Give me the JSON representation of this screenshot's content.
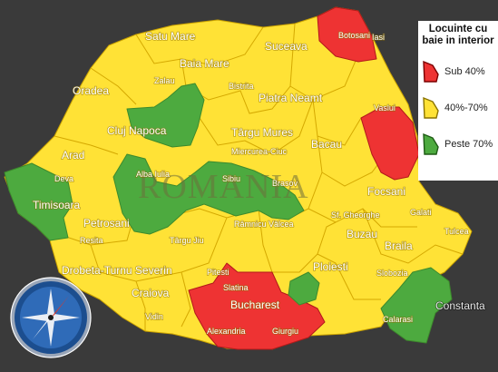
{
  "watermark": "ROMANIA",
  "colors": {
    "red": "#ee3333",
    "yellow": "#ffe236",
    "green": "#4daa3f"
  },
  "legend": {
    "title": "Locuinte cu baie in interior",
    "items": [
      {
        "label": "Sub 40%",
        "class": "red"
      },
      {
        "label": "40%-70%",
        "class": "yellow"
      },
      {
        "label": "Peste 70%",
        "class": "green"
      }
    ]
  },
  "labels": {
    "satu_mare": "Satu Mare",
    "baia_mare": "Baia Mare",
    "suceava": "Suceava",
    "botosani": "Botosani",
    "iasi": "Iasi",
    "oradea": "Oradea",
    "zalau": "Zalau",
    "bistrita": "Bistrita",
    "piatra_neamt": "Piatra Neamt",
    "vaslui": "Vaslui",
    "cluj_napoca": "Cluj Napoca",
    "targu_mures": "Târgu Mures",
    "bacau": "Bacau",
    "miercurea_ciuc": "Miercurea-Ciuc",
    "arad": "Arad",
    "alba_iulia": "Alba Iulia",
    "deva": "Deva",
    "sibiu": "Sibiu",
    "timisoara": "Timisoara",
    "brasov": "Brasov",
    "focsani": "Focsani",
    "galati": "Galati",
    "sf_gheorghe": "Sf. Gheorghe",
    "petrosani": "Petrosani",
    "ramnicu_valcea": "Râmnicu Vâlcea",
    "buzau": "Buzau",
    "resita": "Resita",
    "targu_jiu": "Târgu Jiu",
    "braila": "Braila",
    "tulcea": "Tulcea",
    "pitesti": "Pitesti",
    "ploiesti": "Ploiesti",
    "drobeta": "Drobeta-Turnu Severin",
    "slobozia": "Slobozia",
    "craiova": "Craiova",
    "slatina": "Slatina",
    "bucharest": "Bucharest",
    "constanta": "Constanta",
    "calarasi": "Calarasi",
    "vidin": "Vidin",
    "alexandria": "Alexandria",
    "giurgiu": "Giurgiu"
  }
}
